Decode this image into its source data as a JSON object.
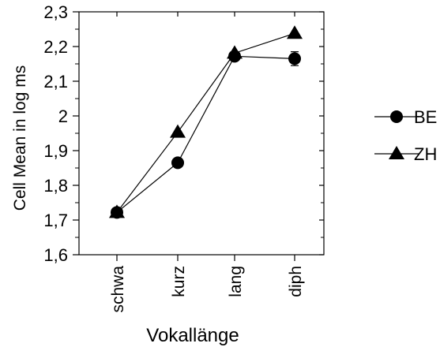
{
  "chart_data": {
    "type": "line",
    "categories": [
      "schwa",
      "kurz",
      "lang",
      "diph"
    ],
    "series": [
      {
        "name": "BE",
        "marker": "circle",
        "values": [
          1.722,
          1.865,
          2.172,
          2.165
        ],
        "errors": [
          0.008,
          0.0,
          0.006,
          0.02
        ]
      },
      {
        "name": "ZH",
        "marker": "triangle",
        "values": [
          1.722,
          1.953,
          2.181,
          2.238
        ],
        "errors": [
          0.008,
          0.0,
          0.0,
          0.0
        ]
      }
    ],
    "title": "",
    "xlabel": "Vokallänge",
    "ylabel": "Cell Mean in log ms",
    "ylim": [
      1.6,
      2.3
    ],
    "yticks": [
      "1,6",
      "1,7",
      "1,8",
      "1,9",
      "2",
      "2,1",
      "2,2",
      "2,3"
    ],
    "grid": false,
    "legend": "right",
    "colors": {
      "line": "#000000",
      "marker": "#000000"
    }
  }
}
